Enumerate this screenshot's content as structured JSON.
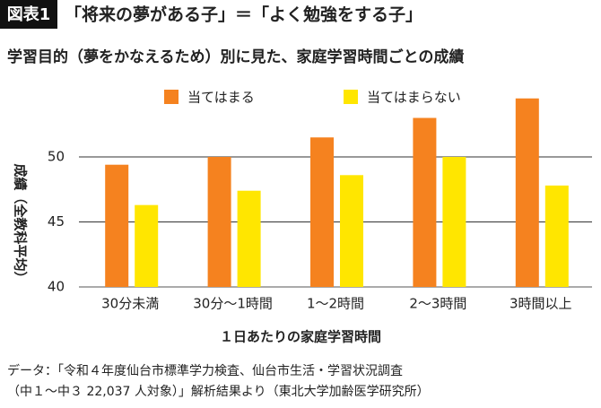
{
  "chart_data": {
    "type": "bar",
    "figure_label": "図表1",
    "title": "「将来の夢がある子」＝「よく勉強をする子」",
    "subtitle": "学習目的（夢をかなえるため）別に見た、家庭学習時間ごとの成績",
    "y_label": "成績（全教科平均）",
    "x_label": "１日あたりの家庭学習時間",
    "categories": [
      "30分未満",
      "30分～1時間",
      "1～2時間",
      "2～3時間",
      "3時間以上"
    ],
    "series": [
      {
        "name": "当てはまる",
        "color": "#f5821f",
        "values": [
          49.4,
          50.0,
          51.5,
          53.0,
          54.5
        ]
      },
      {
        "name": "当てはまらない",
        "color": "#ffe600",
        "values": [
          46.3,
          47.4,
          48.6,
          50.0,
          47.8
        ]
      }
    ],
    "ylim": [
      40,
      55
    ],
    "yticks": [
      40,
      45,
      50
    ],
    "grid": true,
    "notes": [
      "データ：「令和４年度仙台市標準学力検査、仙台市生活・学習状況調査",
      "（中１～中３ 22,037 人対象）」解析結果より（東北大学加齢医学研究所）"
    ]
  }
}
